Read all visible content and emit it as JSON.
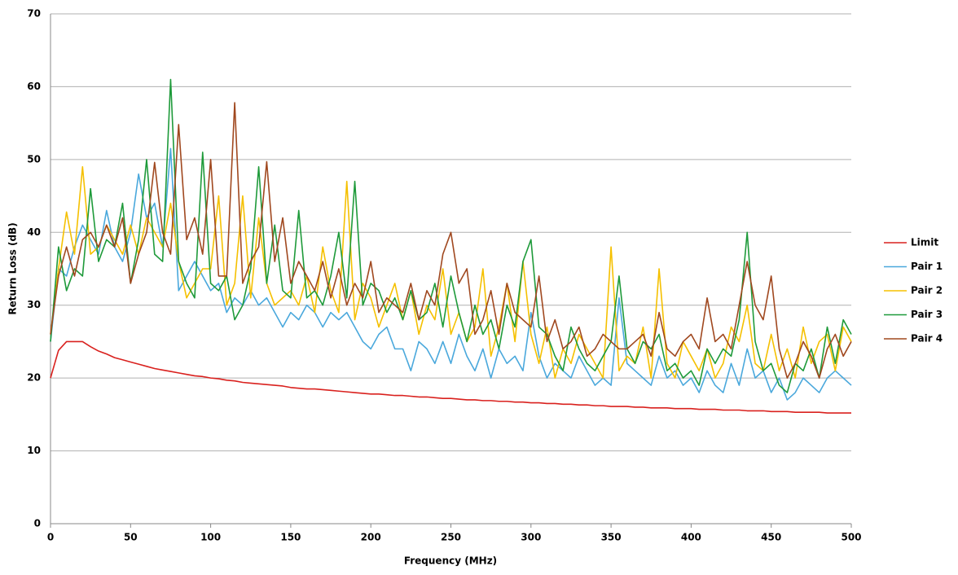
{
  "chart_data": {
    "type": "line",
    "xlabel": "Frequency (MHz)",
    "ylabel": "Return Loss (dB)",
    "x": [
      0,
      5,
      10,
      15,
      20,
      25,
      30,
      35,
      40,
      45,
      50,
      55,
      60,
      65,
      70,
      75,
      80,
      85,
      90,
      95,
      100,
      105,
      110,
      115,
      120,
      125,
      130,
      135,
      140,
      145,
      150,
      155,
      160,
      165,
      170,
      175,
      180,
      185,
      190,
      195,
      200,
      205,
      210,
      215,
      220,
      225,
      230,
      235,
      240,
      245,
      250,
      255,
      260,
      265,
      270,
      275,
      280,
      285,
      290,
      295,
      300,
      305,
      310,
      315,
      320,
      325,
      330,
      335,
      340,
      345,
      350,
      355,
      360,
      365,
      370,
      375,
      380,
      385,
      390,
      395,
      400,
      405,
      410,
      415,
      420,
      425,
      430,
      435,
      440,
      445,
      450,
      455,
      460,
      465,
      470,
      475,
      480,
      485,
      490,
      495,
      500
    ],
    "xlim": [
      0,
      500
    ],
    "xticks": [
      0,
      50,
      100,
      150,
      200,
      250,
      300,
      350,
      400,
      450,
      500
    ],
    "ylim": [
      0,
      70
    ],
    "yticks": [
      0,
      10,
      20,
      30,
      40,
      50,
      60,
      70
    ],
    "grid": true,
    "legend": "right",
    "series": [
      {
        "name": "Limit",
        "color": "#d9211e",
        "values": [
          20,
          23.8,
          25,
          25,
          25,
          24.3,
          23.7,
          23.3,
          22.8,
          22.5,
          22.2,
          21.9,
          21.6,
          21.3,
          21.1,
          20.9,
          20.7,
          20.5,
          20.3,
          20.2,
          20,
          19.9,
          19.7,
          19.6,
          19.4,
          19.3,
          19.2,
          19.1,
          19,
          18.9,
          18.7,
          18.6,
          18.5,
          18.5,
          18.4,
          18.3,
          18.2,
          18.1,
          18,
          17.9,
          17.8,
          17.8,
          17.7,
          17.6,
          17.6,
          17.5,
          17.4,
          17.4,
          17.3,
          17.2,
          17.2,
          17.1,
          17,
          17,
          16.9,
          16.9,
          16.8,
          16.8,
          16.7,
          16.7,
          16.6,
          16.6,
          16.5,
          16.5,
          16.4,
          16.4,
          16.3,
          16.3,
          16.2,
          16.2,
          16.1,
          16.1,
          16.1,
          16,
          16,
          15.9,
          15.9,
          15.9,
          15.8,
          15.8,
          15.8,
          15.7,
          15.7,
          15.7,
          15.6,
          15.6,
          15.6,
          15.5,
          15.5,
          15.5,
          15.4,
          15.4,
          15.4,
          15.3,
          15.3,
          15.3,
          15.3,
          15.2,
          15.2,
          15.2,
          15.2
        ]
      },
      {
        "name": "Pair 1",
        "color": "#4aa8dc",
        "values": [
          25,
          35,
          34,
          38,
          41,
          39,
          37,
          43,
          38,
          36,
          40,
          48,
          42,
          44,
          38,
          51.5,
          32,
          34,
          36,
          34,
          32,
          33,
          29,
          31,
          30,
          32,
          30,
          31,
          29,
          27,
          29,
          28,
          30,
          29,
          27,
          29,
          28,
          29,
          27,
          25,
          24,
          26,
          27,
          24,
          24,
          21,
          25,
          24,
          22,
          25,
          22,
          26,
          23,
          21,
          24,
          20,
          24,
          22,
          23,
          21,
          29,
          23,
          20,
          22,
          21,
          20,
          23,
          21,
          19,
          20,
          19,
          31,
          22,
          21,
          20,
          19,
          23,
          20,
          21,
          19,
          20,
          18,
          21,
          19,
          18,
          22,
          19,
          24,
          20,
          21,
          18,
          20,
          17,
          18,
          20,
          19,
          18,
          20,
          21,
          20,
          19
        ]
      },
      {
        "name": "Pair 2",
        "color": "#f5c000",
        "values": [
          26,
          35,
          42.8,
          37,
          49,
          37,
          38,
          41,
          39,
          37,
          41,
          37,
          42,
          40,
          38,
          44,
          36,
          31,
          33,
          35,
          35,
          45,
          30,
          33,
          45,
          31,
          42,
          33,
          30,
          31,
          32,
          30,
          34,
          29,
          38,
          32,
          29,
          47,
          28,
          33,
          31,
          27,
          30,
          33,
          28,
          32,
          26,
          30,
          28,
          35,
          26,
          29,
          25,
          27,
          35,
          23,
          27,
          33,
          25,
          36,
          26,
          22,
          27,
          20,
          24,
          22,
          26,
          24,
          22,
          20,
          38,
          21,
          23,
          22,
          27,
          20,
          35,
          22,
          20,
          25,
          23,
          21,
          24,
          20,
          22,
          27,
          25,
          30,
          22,
          21,
          26,
          21,
          24,
          20,
          27,
          22,
          25,
          26,
          21,
          27,
          25
        ]
      },
      {
        "name": "Pair 3",
        "color": "#1e9a3a",
        "values": [
          25,
          38,
          32,
          35,
          34,
          46,
          36,
          39,
          38,
          44,
          33,
          39,
          50,
          37,
          36,
          61,
          36,
          33,
          31,
          51,
          33,
          32,
          34,
          28,
          30,
          35,
          49,
          33,
          41,
          32,
          31,
          43,
          31,
          32,
          30,
          34,
          40,
          31,
          47,
          30,
          33,
          32,
          29,
          31,
          28,
          32,
          28,
          29,
          33,
          27,
          34,
          29,
          25,
          30,
          26,
          28,
          24,
          30,
          27,
          36,
          39,
          27,
          26,
          23,
          21,
          27,
          24,
          22,
          21,
          23,
          25,
          34,
          24,
          22,
          25,
          24,
          26,
          21,
          22,
          20,
          21,
          19,
          24,
          22,
          24,
          23,
          28,
          40,
          25,
          21,
          22,
          19,
          18,
          22,
          21,
          24,
          20,
          27,
          22,
          28,
          26
        ]
      },
      {
        "name": "Pair 4",
        "color": "#a0481f",
        "values": [
          26,
          34,
          38,
          34,
          39,
          40,
          38,
          41,
          38,
          42,
          33,
          37,
          40,
          49.6,
          40,
          37,
          54.8,
          39,
          42,
          37,
          50,
          34,
          34,
          57.8,
          33,
          36,
          38,
          49.7,
          36,
          42,
          33,
          36,
          34,
          32,
          36,
          31,
          35,
          30,
          33,
          31,
          36,
          29,
          31,
          30,
          29,
          33,
          28,
          32,
          30,
          37,
          40,
          33,
          35,
          26,
          28,
          32,
          26,
          33,
          29,
          28,
          27,
          34,
          25,
          28,
          24,
          25,
          27,
          23,
          24,
          26,
          25,
          24,
          24,
          25,
          26,
          23,
          29,
          24,
          23,
          25,
          26,
          24,
          31,
          25,
          26,
          24,
          30,
          36,
          30,
          28,
          34,
          24,
          20,
          22,
          25,
          23,
          20,
          24,
          26,
          23,
          25
        ]
      }
    ]
  }
}
